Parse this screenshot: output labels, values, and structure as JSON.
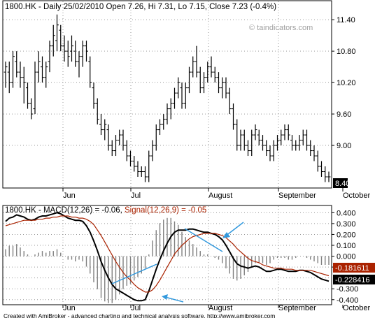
{
  "chart_data": [
    {
      "type": "ohlc",
      "title": "1800.HK - Daily 25/02/2010 Open 7.26, Hi 7.31, Lo 7.15, Close 7.23 (-0.4%)",
      "watermark": "© taindicators.com",
      "y_ticks": [
        11.4,
        10.8,
        10.2,
        9.6,
        9.0
      ],
      "y_tick_labels": [
        "11.40",
        "10.80",
        "10.20",
        "9.60",
        "9.00"
      ],
      "last_value_label": "8.40",
      "ylim": [
        8.2,
        11.75
      ],
      "x_tick_labels": [
        "Jun",
        "Jul",
        "August",
        "September",
        "October"
      ],
      "grid": true,
      "series": [
        {
          "color": "#000000",
          "points": [
            [
              10.4,
              10.6,
              10.1,
              10.5
            ],
            [
              10.4,
              10.6,
              10.0,
              10.2
            ],
            [
              10.2,
              10.8,
              10.1,
              10.7
            ],
            [
              10.6,
              10.8,
              10.3,
              10.4
            ],
            [
              10.4,
              10.6,
              10.1,
              10.3
            ],
            [
              10.3,
              10.5,
              9.8,
              10.2
            ],
            [
              10.1,
              10.2,
              9.7,
              9.8
            ],
            [
              9.8,
              9.9,
              9.5,
              9.6
            ],
            [
              9.7,
              10.6,
              9.6,
              10.4
            ],
            [
              10.4,
              10.8,
              10.2,
              10.6
            ],
            [
              10.5,
              10.7,
              10.2,
              10.3
            ],
            [
              10.3,
              10.6,
              10.1,
              10.5
            ],
            [
              10.6,
              11.0,
              10.4,
              10.9
            ],
            [
              10.9,
              11.3,
              10.7,
              11.1
            ],
            [
              11.0,
              11.5,
              10.8,
              11.3
            ],
            [
              11.2,
              11.3,
              10.8,
              10.9
            ],
            [
              10.9,
              11.1,
              10.6,
              10.8
            ],
            [
              10.8,
              11.0,
              10.5,
              10.7
            ],
            [
              10.8,
              11.1,
              10.6,
              10.9
            ],
            [
              10.8,
              11.0,
              10.5,
              10.6
            ],
            [
              10.6,
              10.8,
              10.3,
              10.7
            ],
            [
              10.7,
              11.0,
              10.5,
              10.9
            ],
            [
              10.9,
              11.0,
              10.6,
              10.8
            ],
            [
              10.6,
              10.7,
              10.1,
              10.2
            ],
            [
              10.1,
              10.2,
              9.7,
              9.8
            ],
            [
              9.8,
              9.9,
              9.4,
              9.5
            ],
            [
              9.4,
              9.6,
              9.2,
              9.3
            ],
            [
              9.3,
              9.5,
              9.1,
              9.4
            ],
            [
              9.3,
              9.4,
              8.9,
              9.0
            ],
            [
              9.0,
              9.1,
              8.8,
              8.9
            ],
            [
              8.9,
              9.2,
              8.8,
              9.1
            ],
            [
              9.1,
              9.3,
              9.0,
              9.2
            ],
            [
              9.2,
              9.3,
              8.9,
              9.0
            ],
            [
              9.0,
              9.1,
              8.7,
              8.8
            ],
            [
              8.8,
              8.9,
              8.6,
              8.7
            ],
            [
              8.7,
              8.8,
              8.5,
              8.6
            ],
            [
              8.6,
              8.7,
              8.4,
              8.5
            ],
            [
              8.5,
              8.6,
              8.4,
              8.5
            ],
            [
              8.5,
              8.6,
              8.3,
              8.4
            ],
            [
              8.4,
              8.9,
              8.3,
              8.8
            ],
            [
              8.8,
              9.1,
              8.7,
              9.0
            ],
            [
              9.0,
              9.4,
              8.9,
              9.3
            ],
            [
              9.3,
              9.5,
              9.2,
              9.4
            ],
            [
              9.4,
              9.6,
              9.3,
              9.5
            ],
            [
              9.5,
              9.8,
              9.4,
              9.7
            ],
            [
              9.7,
              9.9,
              9.5,
              9.8
            ],
            [
              9.8,
              10.1,
              9.7,
              10.0
            ],
            [
              10.0,
              10.3,
              9.9,
              10.2
            ],
            [
              10.1,
              10.2,
              9.7,
              9.8
            ],
            [
              9.8,
              10.2,
              9.7,
              10.1
            ],
            [
              10.1,
              10.5,
              10.0,
              10.4
            ],
            [
              10.4,
              10.7,
              10.3,
              10.6
            ],
            [
              10.6,
              10.9,
              10.3,
              10.4
            ],
            [
              10.4,
              10.5,
              10.0,
              10.1
            ],
            [
              10.1,
              10.4,
              10.0,
              10.3
            ],
            [
              10.3,
              10.6,
              10.2,
              10.5
            ],
            [
              10.5,
              10.7,
              10.3,
              10.4
            ],
            [
              10.4,
              10.5,
              10.2,
              10.3
            ],
            [
              10.3,
              10.4,
              10.0,
              10.1
            ],
            [
              10.1,
              10.3,
              9.9,
              10.2
            ],
            [
              10.2,
              10.3,
              9.9,
              10.0
            ],
            [
              10.0,
              10.1,
              9.6,
              9.7
            ],
            [
              9.7,
              9.8,
              9.3,
              9.4
            ],
            [
              9.4,
              9.5,
              8.9,
              9.0
            ],
            [
              9.0,
              9.3,
              8.9,
              9.2
            ],
            [
              9.2,
              9.3,
              8.9,
              9.0
            ],
            [
              9.0,
              9.1,
              8.8,
              8.9
            ],
            [
              8.9,
              9.3,
              8.8,
              9.2
            ],
            [
              9.2,
              9.4,
              9.1,
              9.3
            ],
            [
              9.2,
              9.3,
              9.0,
              9.1
            ],
            [
              9.1,
              9.2,
              8.9,
              9.0
            ],
            [
              9.0,
              9.1,
              8.8,
              8.9
            ],
            [
              8.9,
              9.0,
              8.7,
              8.8
            ],
            [
              8.8,
              9.1,
              8.7,
              9.0
            ],
            [
              9.0,
              9.2,
              8.9,
              9.1
            ],
            [
              9.1,
              9.3,
              9.0,
              9.2
            ],
            [
              9.2,
              9.4,
              9.1,
              9.3
            ],
            [
              9.3,
              9.4,
              9.1,
              9.2
            ],
            [
              9.1,
              9.2,
              8.9,
              9.0
            ],
            [
              9.0,
              9.1,
              8.9,
              9.0
            ],
            [
              9.0,
              9.2,
              8.9,
              9.1
            ],
            [
              9.1,
              9.3,
              9.0,
              9.2
            ],
            [
              9.2,
              9.3,
              8.9,
              9.0
            ],
            [
              9.0,
              9.1,
              8.8,
              8.9
            ],
            [
              8.9,
              9.0,
              8.7,
              8.8
            ],
            [
              8.8,
              8.9,
              8.5,
              8.6
            ],
            [
              8.6,
              8.7,
              8.4,
              8.5
            ],
            [
              8.5,
              8.6,
              8.3,
              8.4
            ],
            [
              8.4,
              8.5,
              8.3,
              8.4
            ]
          ]
        }
      ]
    },
    {
      "type": "line",
      "title_prefix": "1800.HK - MACD(12,26) = -0.06, ",
      "title_signal": "Signal(12,26,9) = -0.05",
      "y_ticks": [
        0.4,
        0.3,
        0.2,
        0.1,
        0.0,
        -0.1,
        -0.2,
        -0.3,
        -0.4
      ],
      "y_tick_labels": [
        "0.400",
        "0.300",
        "0.200",
        "0.100",
        "0.000",
        "-0.100",
        "-0.200",
        "-0.300",
        "-0.400"
      ],
      "last_value_labels": [
        "-0.181611",
        "-0.228416"
      ],
      "ylim": [
        -0.44,
        0.46
      ],
      "x_tick_labels": [
        "Jun",
        "Jul",
        "August",
        "September",
        "October"
      ],
      "grid": true,
      "series": [
        {
          "name": "MACD(12,26)",
          "color": "#000000",
          "values": [
            0.32,
            0.35,
            0.36,
            0.38,
            0.37,
            0.36,
            0.34,
            0.33,
            0.34,
            0.36,
            0.37,
            0.37,
            0.38,
            0.39,
            0.4,
            0.39,
            0.37,
            0.35,
            0.34,
            0.33,
            0.33,
            0.32,
            0.28,
            0.22,
            0.14,
            0.05,
            -0.05,
            -0.13,
            -0.2,
            -0.26,
            -0.3,
            -0.32,
            -0.34,
            -0.36,
            -0.38,
            -0.4,
            -0.41,
            -0.41,
            -0.4,
            -0.32,
            -0.22,
            -0.12,
            -0.03,
            0.05,
            0.12,
            0.18,
            0.22,
            0.24,
            0.24,
            0.24,
            0.25,
            0.25,
            0.24,
            0.23,
            0.22,
            0.22,
            0.21,
            0.2,
            0.18,
            0.15,
            0.1,
            0.04,
            -0.02,
            -0.07,
            -0.09,
            -0.1,
            -0.11,
            -0.1,
            -0.09,
            -0.1,
            -0.12,
            -0.14,
            -0.14,
            -0.13,
            -0.12,
            -0.12,
            -0.13,
            -0.14,
            -0.14,
            -0.14,
            -0.13,
            -0.13,
            -0.14,
            -0.15,
            -0.17,
            -0.19,
            -0.21,
            -0.22,
            -0.23
          ]
        },
        {
          "name": "Signal(12,26,9)",
          "color": "#aa2200",
          "values": [
            0.28,
            0.29,
            0.3,
            0.31,
            0.32,
            0.33,
            0.33,
            0.33,
            0.33,
            0.34,
            0.34,
            0.35,
            0.35,
            0.36,
            0.36,
            0.37,
            0.37,
            0.37,
            0.36,
            0.36,
            0.35,
            0.35,
            0.34,
            0.32,
            0.29,
            0.24,
            0.19,
            0.13,
            0.07,
            0.01,
            -0.05,
            -0.1,
            -0.15,
            -0.19,
            -0.22,
            -0.26,
            -0.29,
            -0.31,
            -0.33,
            -0.33,
            -0.31,
            -0.27,
            -0.22,
            -0.16,
            -0.1,
            -0.04,
            0.02,
            0.06,
            0.1,
            0.13,
            0.16,
            0.18,
            0.19,
            0.2,
            0.21,
            0.21,
            0.21,
            0.21,
            0.2,
            0.19,
            0.17,
            0.14,
            0.11,
            0.07,
            0.04,
            0.01,
            -0.02,
            -0.04,
            -0.05,
            -0.06,
            -0.08,
            -0.09,
            -0.1,
            -0.11,
            -0.11,
            -0.11,
            -0.12,
            -0.12,
            -0.12,
            -0.13,
            -0.13,
            -0.13,
            -0.13,
            -0.13,
            -0.14,
            -0.15,
            -0.16,
            -0.17,
            -0.18
          ]
        }
      ],
      "histogram_color": "#808080",
      "annotation_color": "#3399dd"
    }
  ],
  "footer": "Created with AmiBroker - advanced charting and technical analysis software. http://www.amibroker.com"
}
